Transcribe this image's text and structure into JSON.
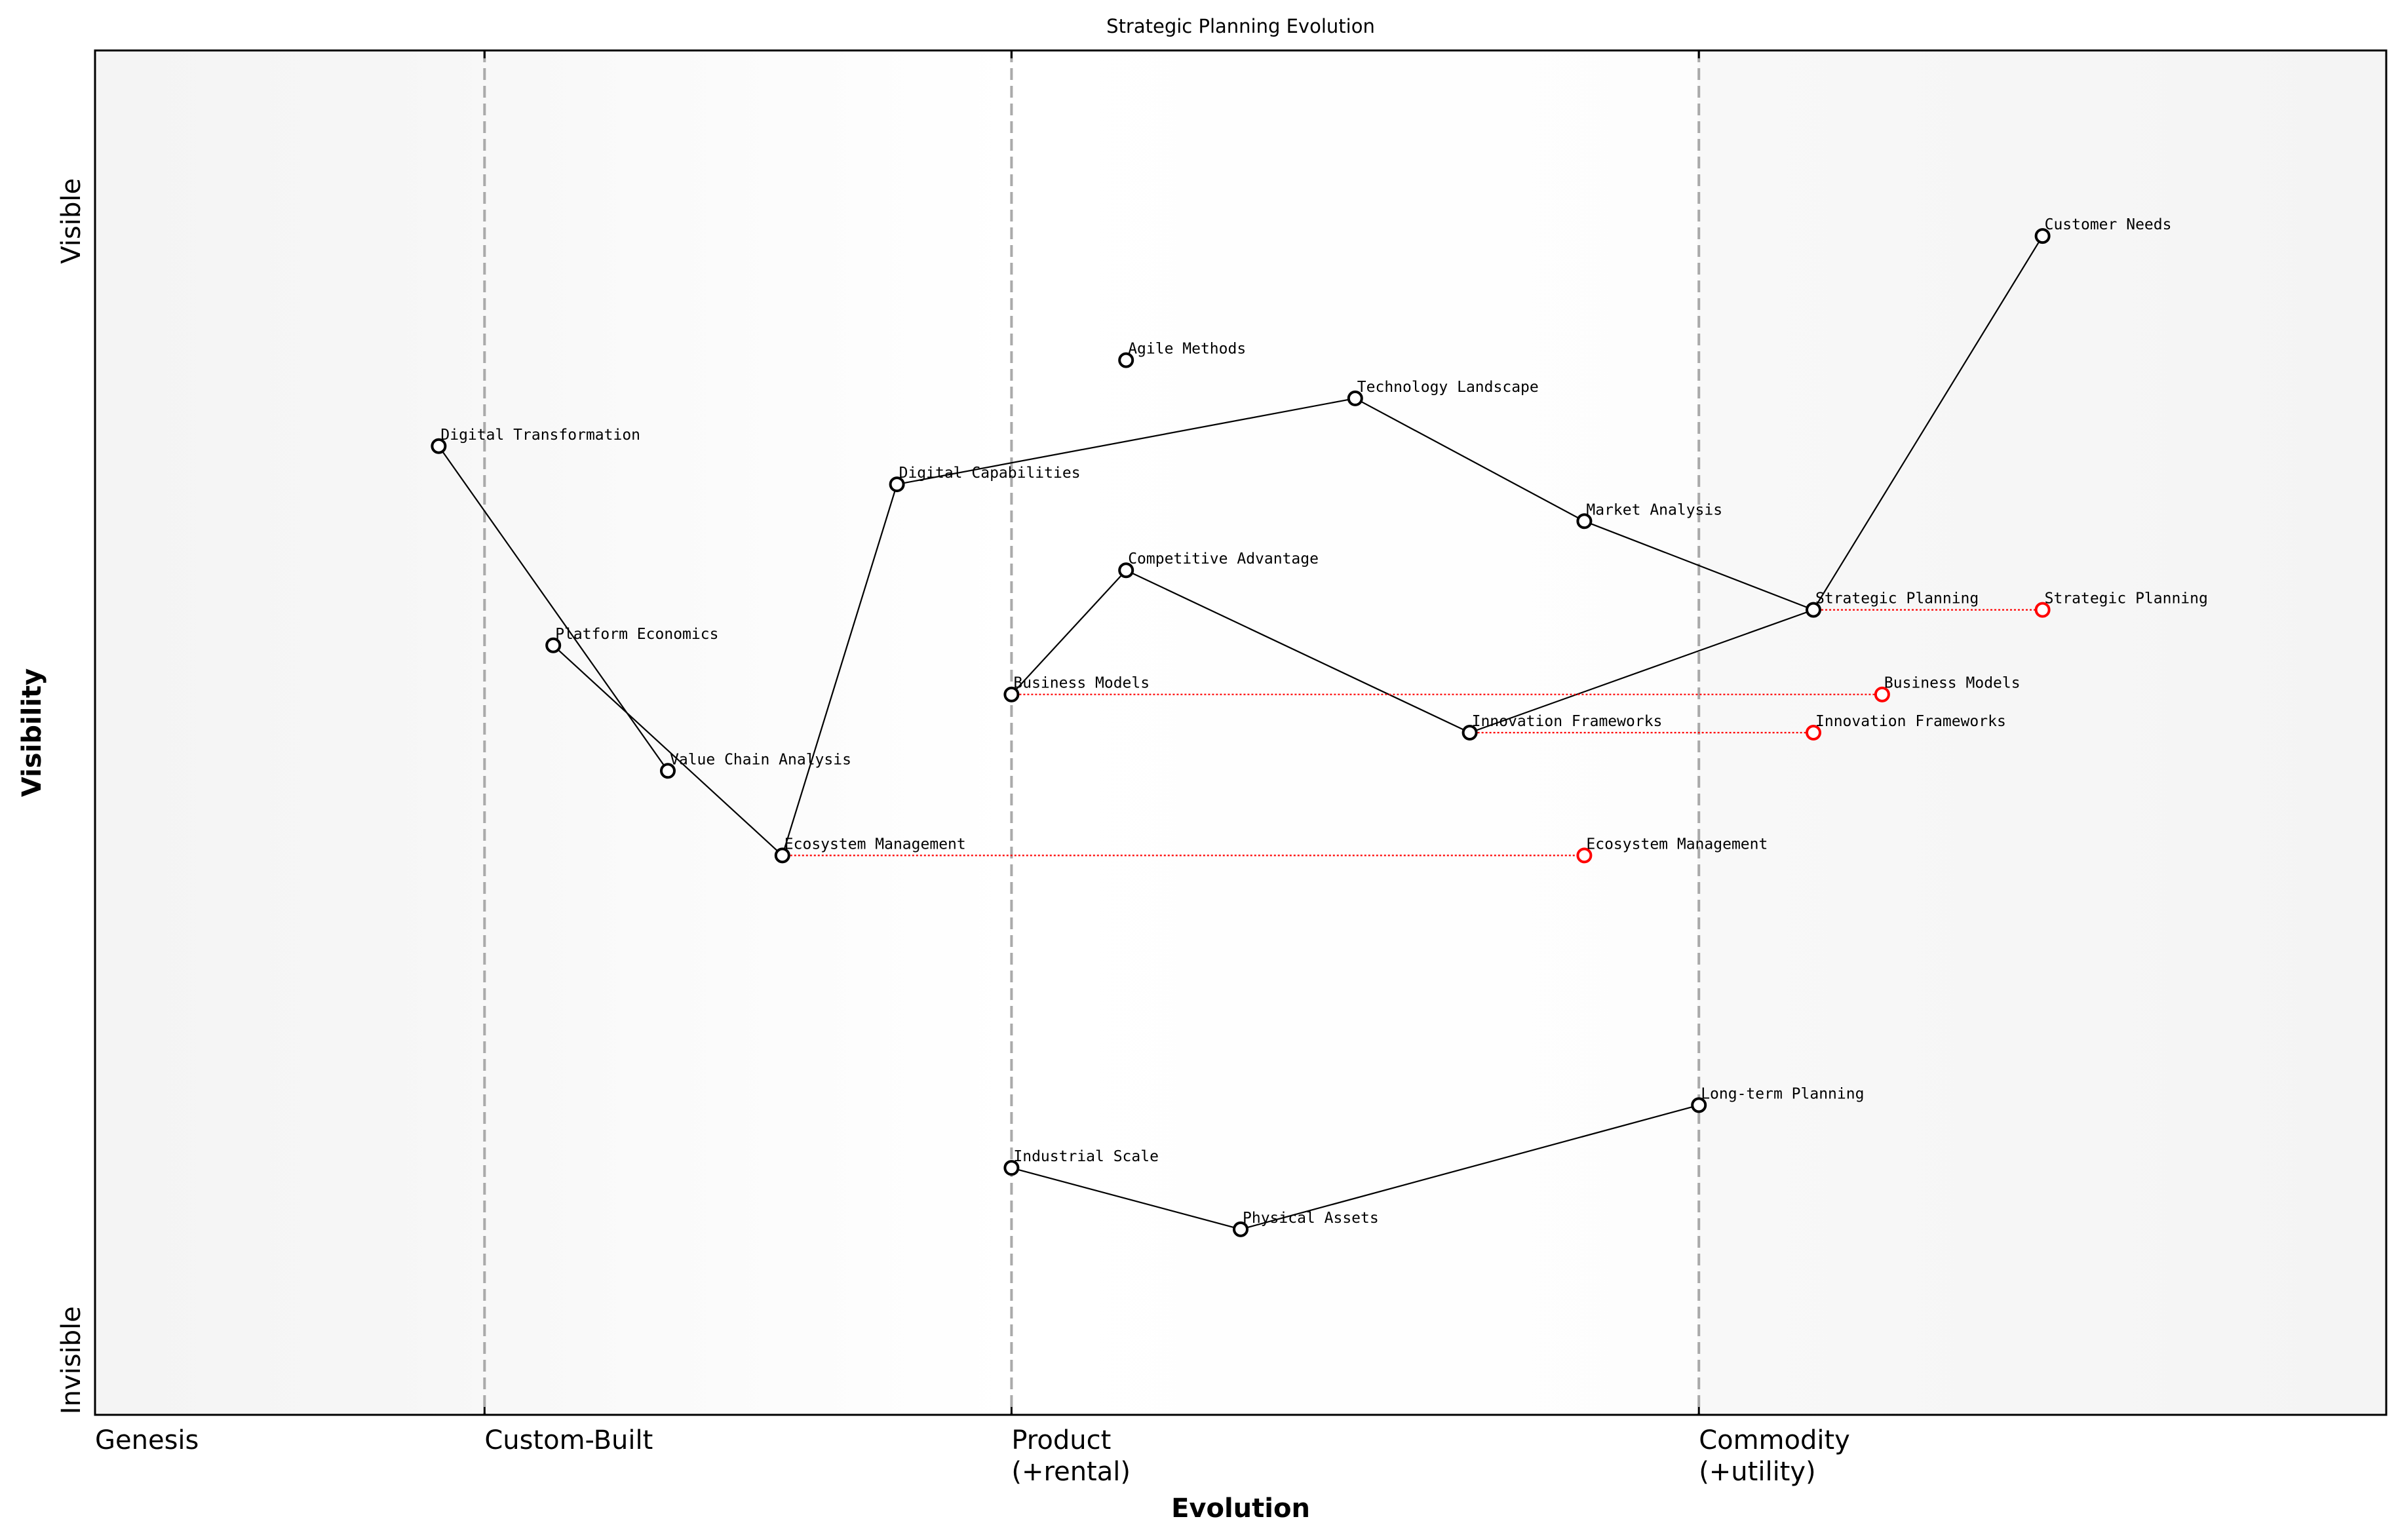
{
  "chart_data": {
    "type": "scatter",
    "title": "Strategic Planning Evolution",
    "xlabel": "Evolution",
    "ylabel": "Visibility",
    "xlim": [
      0,
      1
    ],
    "ylim": [
      0,
      1
    ],
    "grid": false,
    "x_ticks": [
      {
        "value": 0.0,
        "label": [
          "Genesis"
        ]
      },
      {
        "value": 0.17,
        "label": [
          "Custom-Built"
        ]
      },
      {
        "value": 0.4,
        "label": [
          "Product",
          "(+rental)"
        ]
      },
      {
        "value": 0.7,
        "label": [
          "Commodity",
          "(+utility)"
        ]
      }
    ],
    "y_ticks": [
      {
        "value": 0.875,
        "label": "Visible"
      },
      {
        "value": 0.04,
        "label": "Invisible"
      }
    ],
    "stage_lines": [
      0.17,
      0.4,
      0.7
    ],
    "colors": {
      "component": "#000000",
      "evolved": "#ff0000",
      "stage_line": "#aaaaaa",
      "background_edge": "#f5f5f5",
      "background_center": "#ffffff"
    },
    "components": [
      {
        "name": "Customer Needs",
        "x": 0.85,
        "y": 0.864
      },
      {
        "name": "Agile Methods",
        "x": 0.45,
        "y": 0.773
      },
      {
        "name": "Technology Landscape",
        "x": 0.55,
        "y": 0.745
      },
      {
        "name": "Digital Transformation",
        "x": 0.15,
        "y": 0.71
      },
      {
        "name": "Digital Capabilities",
        "x": 0.35,
        "y": 0.682
      },
      {
        "name": "Market Analysis",
        "x": 0.65,
        "y": 0.655
      },
      {
        "name": "Competitive Advantage",
        "x": 0.45,
        "y": 0.619
      },
      {
        "name": "Strategic Planning",
        "x": 0.75,
        "y": 0.59
      },
      {
        "name": "Platform Economics",
        "x": 0.2,
        "y": 0.564
      },
      {
        "name": "Business Models",
        "x": 0.4,
        "y": 0.528
      },
      {
        "name": "Innovation Frameworks",
        "x": 0.6,
        "y": 0.5
      },
      {
        "name": "Value Chain Analysis",
        "x": 0.25,
        "y": 0.472
      },
      {
        "name": "Ecosystem Management",
        "x": 0.3,
        "y": 0.41
      },
      {
        "name": "Long-term Planning",
        "x": 0.7,
        "y": 0.227
      },
      {
        "name": "Industrial Scale",
        "x": 0.4,
        "y": 0.181
      },
      {
        "name": "Physical Assets",
        "x": 0.5,
        "y": 0.136
      }
    ],
    "links": [
      [
        "Digital Transformation",
        "Value Chain Analysis"
      ],
      [
        "Platform Economics",
        "Ecosystem Management"
      ],
      [
        "Ecosystem Management",
        "Digital Capabilities"
      ],
      [
        "Digital Capabilities",
        "Technology Landscape"
      ],
      [
        "Technology Landscape",
        "Market Analysis"
      ],
      [
        "Market Analysis",
        "Strategic Planning"
      ],
      [
        "Strategic Planning",
        "Customer Needs"
      ],
      [
        "Business Models",
        "Competitive Advantage"
      ],
      [
        "Competitive Advantage",
        "Innovation Frameworks"
      ],
      [
        "Innovation Frameworks",
        "Strategic Planning"
      ],
      [
        "Industrial Scale",
        "Physical Assets"
      ],
      [
        "Physical Assets",
        "Long-term Planning"
      ]
    ],
    "evolutions": [
      {
        "name": "Strategic Planning",
        "to_x": 0.85
      },
      {
        "name": "Business Models",
        "to_x": 0.78
      },
      {
        "name": "Innovation Frameworks",
        "to_x": 0.75
      },
      {
        "name": "Ecosystem Management",
        "to_x": 0.65
      }
    ]
  }
}
